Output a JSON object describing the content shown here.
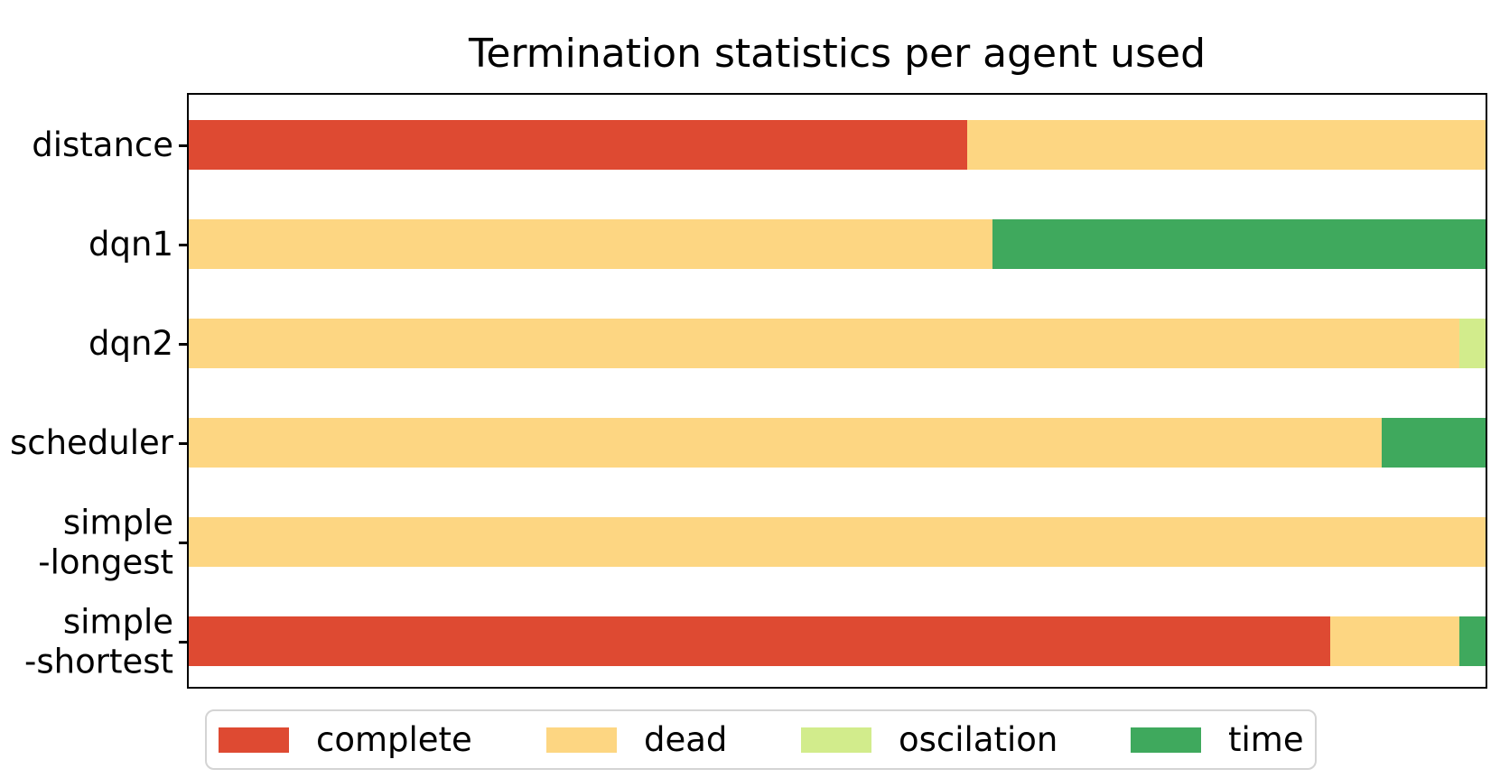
{
  "chart_data": {
    "type": "bar",
    "orientation": "horizontal",
    "stacked": true,
    "title": "Termination statistics per agent used",
    "categories": [
      "distance",
      "dqn1",
      "dqn2",
      "scheduler",
      "simple\n-longest",
      "simple\n-shortest"
    ],
    "series": [
      {
        "name": "complete",
        "color": "#de4a32",
        "values": [
          60,
          0,
          0,
          0,
          0,
          88
        ]
      },
      {
        "name": "dead",
        "color": "#fdd682",
        "values": [
          40,
          62,
          98,
          92,
          100,
          10
        ]
      },
      {
        "name": "oscilation",
        "color": "#d2ec8c",
        "values": [
          0,
          0,
          2,
          0,
          0,
          0
        ]
      },
      {
        "name": "time",
        "color": "#3fa95d",
        "values": [
          0,
          38,
          0,
          8,
          0,
          2
        ]
      }
    ],
    "x_axis": {
      "min": 0,
      "max": 100,
      "unit": "fraction of runs",
      "ticks_visible": false
    },
    "legend_position": "bottom",
    "grid": false
  }
}
